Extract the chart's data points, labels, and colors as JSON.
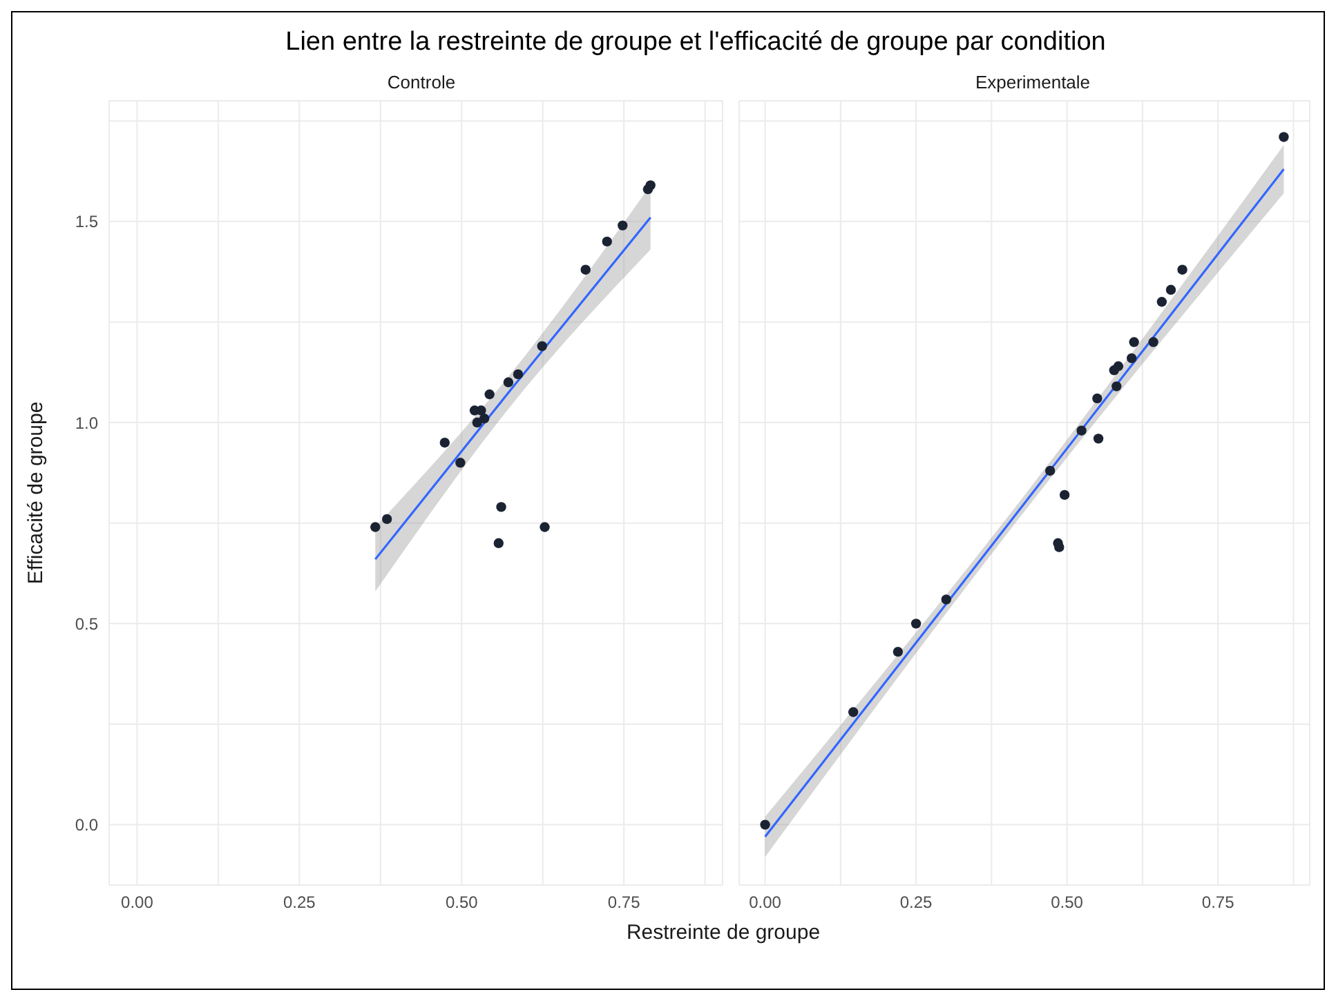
{
  "chart_data": [
    {
      "type": "scatter",
      "title": "Lien entre la restreinte de groupe et l'efficacité de groupe par condition",
      "subtitle": "Controle",
      "xlabel": "Restreinte de groupe",
      "ylabel": "Efficacité de groupe",
      "xlim": [
        -0.043,
        0.902
      ],
      "ylim": [
        -0.15,
        1.8
      ],
      "xticks": [
        {
          "value": 0,
          "label": "0.00"
        },
        {
          "value": 0.125,
          "label": null
        },
        {
          "value": 0.25,
          "label": "0.25"
        },
        {
          "value": 0.375,
          "label": null
        },
        {
          "value": 0.5,
          "label": "0.50"
        },
        {
          "value": 0.625,
          "label": null
        },
        {
          "value": 0.75,
          "label": "0.75"
        },
        {
          "value": 0.875,
          "label": null
        }
      ],
      "yticks": [
        {
          "value": 0,
          "label": "0.0"
        },
        {
          "value": 0.25,
          "label": null
        },
        {
          "value": 0.5,
          "label": "0.5"
        },
        {
          "value": 0.75,
          "label": null
        },
        {
          "value": 1,
          "label": "1.0"
        },
        {
          "value": 1.25,
          "label": null
        },
        {
          "value": 1.5,
          "label": "1.5"
        },
        {
          "value": 1.75,
          "label": null
        }
      ],
      "grid": true,
      "legend": false,
      "series": [
        {
          "marker": "circle",
          "color": "#1b2333",
          "x": [
            0.367,
            0.385,
            0.474,
            0.498,
            0.52,
            0.53,
            0.524,
            0.535,
            0.543,
            0.557,
            0.561,
            0.572,
            0.587,
            0.624,
            0.628,
            0.691,
            0.724,
            0.748,
            0.787,
            0.791
          ],
          "values": [
            0.74,
            0.76,
            0.95,
            0.9,
            1.03,
            1.03,
            1.0,
            1.01,
            1.07,
            0.7,
            0.79,
            1.1,
            1.12,
            1.19,
            0.74,
            1.38,
            1.45,
            1.49,
            1.58,
            1.59
          ]
        },
        {
          "type": "line",
          "marker": "none",
          "color": "#3366ff",
          "x": [
            0.367,
            0.58,
            0.791
          ],
          "values": [
            0.66,
            1.09,
            1.51
          ],
          "lower": [
            0.58,
            1.05,
            1.43
          ],
          "upper": [
            0.74,
            1.13,
            1.59
          ]
        }
      ]
    },
    {
      "type": "scatter",
      "subtitle": "Experimentale",
      "tick_labels": "x",
      "xlim": [
        -0.043,
        0.902
      ],
      "ylim": [
        -0.15,
        1.8
      ],
      "xticks": [
        {
          "value": 0,
          "label": "0.00"
        },
        {
          "value": 0.125,
          "label": null
        },
        {
          "value": 0.25,
          "label": "0.25"
        },
        {
          "value": 0.375,
          "label": null
        },
        {
          "value": 0.5,
          "label": "0.50"
        },
        {
          "value": 0.625,
          "label": null
        },
        {
          "value": 0.75,
          "label": "0.75"
        },
        {
          "value": 0.875,
          "label": null
        }
      ],
      "yticks": [
        {
          "value": 0,
          "label": null
        },
        {
          "value": 0.25,
          "label": null
        },
        {
          "value": 0.5,
          "label": null
        },
        {
          "value": 0.75,
          "label": null
        },
        {
          "value": 1,
          "label": null
        },
        {
          "value": 1.25,
          "label": null
        },
        {
          "value": 1.5,
          "label": null
        },
        {
          "value": 1.75,
          "label": null
        }
      ],
      "grid": true,
      "legend": false,
      "series": [
        {
          "marker": "circle",
          "color": "#1b2333",
          "x": [
            0.0,
            0.146,
            0.22,
            0.25,
            0.3,
            0.472,
            0.485,
            0.487,
            0.496,
            0.524,
            0.55,
            0.552,
            0.578,
            0.582,
            0.585,
            0.607,
            0.611,
            0.643,
            0.657,
            0.672,
            0.691,
            0.859
          ],
          "values": [
            0.0,
            0.28,
            0.43,
            0.5,
            0.56,
            0.88,
            0.7,
            0.69,
            0.82,
            0.98,
            1.06,
            0.96,
            1.13,
            1.09,
            1.14,
            1.16,
            1.2,
            1.2,
            1.3,
            1.33,
            1.38,
            1.71
          ]
        },
        {
          "type": "line",
          "marker": "none",
          "color": "#3366ff",
          "x": [
            0.0,
            0.43,
            0.859
          ],
          "values": [
            -0.03,
            0.8,
            1.63
          ],
          "lower": [
            -0.08,
            0.78,
            1.57
          ],
          "upper": [
            0.02,
            0.82,
            1.69
          ]
        }
      ]
    }
  ]
}
